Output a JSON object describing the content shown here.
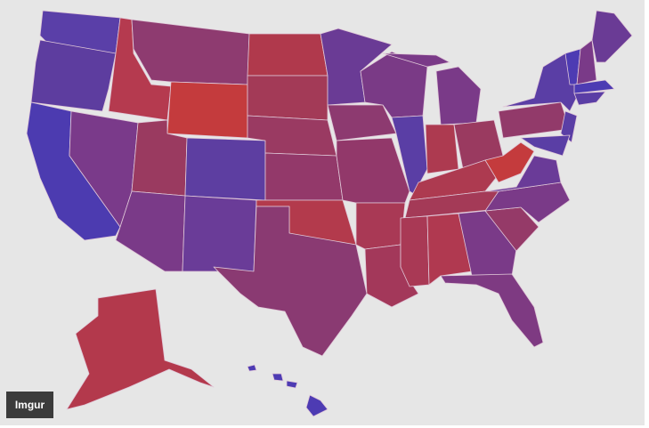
{
  "badge": {
    "label": "Imgur"
  }
}
